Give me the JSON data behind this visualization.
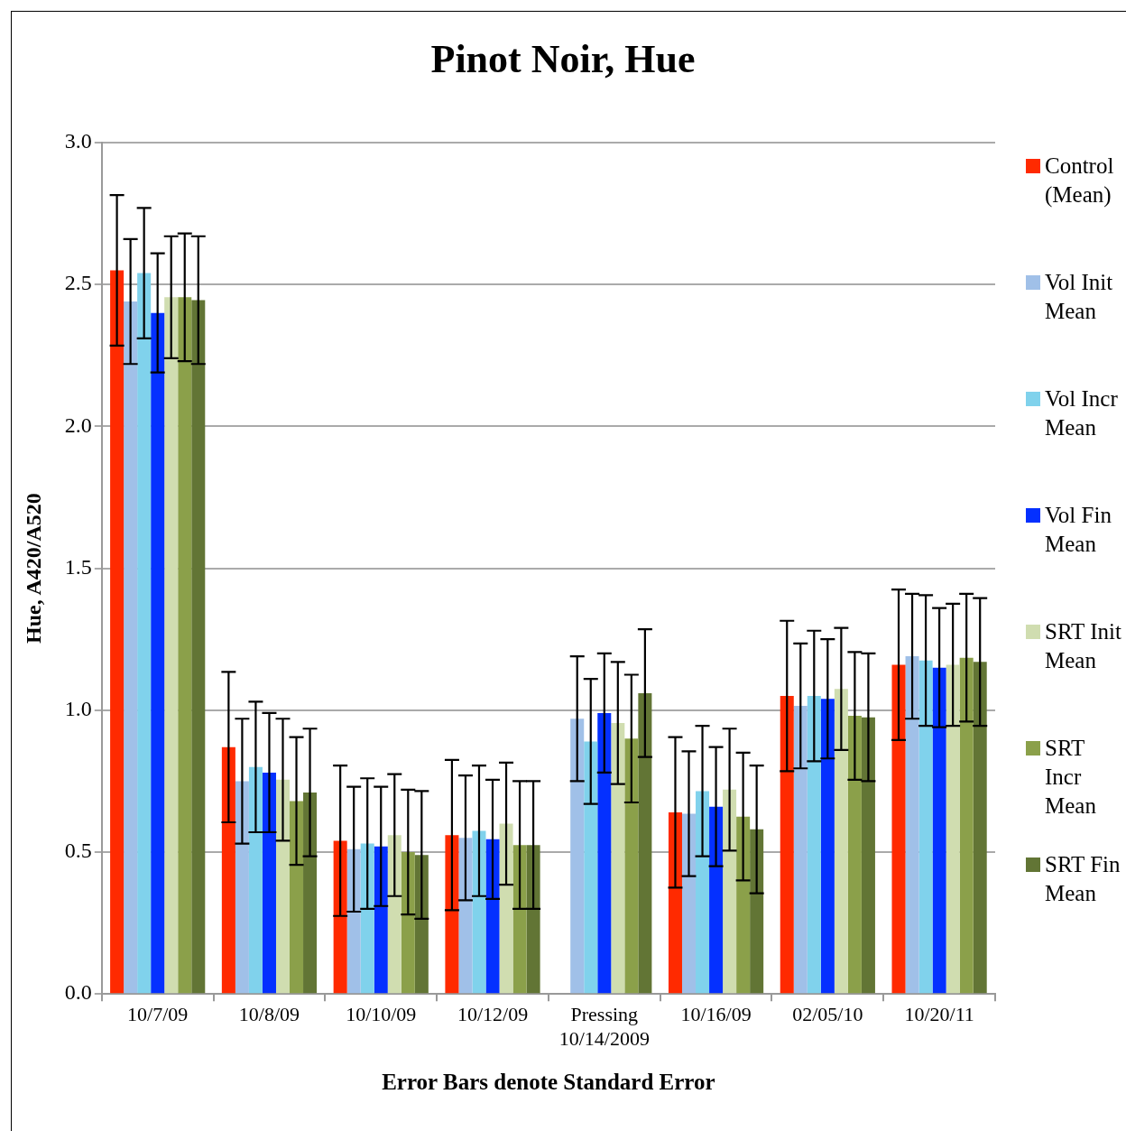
{
  "chart_data": {
    "type": "bar",
    "title": "Pinot Noir, Hue",
    "xlabel": "Error Bars denote Standard Error",
    "ylabel": "Hue, A420/A520",
    "categories": [
      "10/7/09",
      "10/8/09",
      "10/10/09",
      "10/12/09",
      "Pressing 10/14/2009",
      "10/16/09",
      "02/05/10",
      "10/20/11"
    ],
    "series": [
      {
        "name": "Control (Mean)",
        "color": "#ff2a00",
        "values": [
          2.55,
          0.87,
          0.54,
          0.56,
          null,
          0.64,
          1.05,
          1.16
        ],
        "errors": [
          0.265,
          0.265,
          0.265,
          0.265,
          null,
          0.265,
          0.265,
          0.265
        ]
      },
      {
        "name": "Vol Init Mean",
        "color": "#a0c0e8",
        "values": [
          2.44,
          0.75,
          0.51,
          0.55,
          0.97,
          0.635,
          1.015,
          1.19
        ],
        "errors": [
          0.22,
          0.22,
          0.22,
          0.22,
          0.22,
          0.22,
          0.22,
          0.22
        ]
      },
      {
        "name": "Vol Incr Mean",
        "color": "#80d2ec",
        "values": [
          2.54,
          0.8,
          0.53,
          0.575,
          0.89,
          0.715,
          1.05,
          1.175
        ],
        "errors": [
          0.23,
          0.23,
          0.23,
          0.23,
          0.22,
          0.23,
          0.23,
          0.23
        ]
      },
      {
        "name": "Vol Fin Mean",
        "color": "#0430ff",
        "values": [
          2.4,
          0.78,
          0.52,
          0.545,
          0.99,
          0.66,
          1.04,
          1.15
        ],
        "errors": [
          0.21,
          0.21,
          0.21,
          0.21,
          0.21,
          0.21,
          0.21,
          0.21
        ]
      },
      {
        "name": "SRT Init Mean",
        "color": "#d0ddb0",
        "values": [
          2.455,
          0.755,
          0.56,
          0.6,
          0.955,
          0.72,
          1.075,
          1.16
        ],
        "errors": [
          0.215,
          0.215,
          0.215,
          0.215,
          0.215,
          0.215,
          0.215,
          0.215
        ]
      },
      {
        "name": "SRT Incr Mean",
        "color": "#8ba04a",
        "values": [
          2.455,
          0.68,
          0.5,
          0.525,
          0.9,
          0.625,
          0.98,
          1.185
        ],
        "errors": [
          0.225,
          0.225,
          0.22,
          0.225,
          0.225,
          0.225,
          0.225,
          0.225
        ]
      },
      {
        "name": "SRT Fin Mean",
        "color": "#627535",
        "values": [
          2.445,
          0.71,
          0.49,
          0.525,
          1.06,
          0.58,
          0.975,
          1.17
        ],
        "errors": [
          0.225,
          0.225,
          0.225,
          0.225,
          0.225,
          0.225,
          0.225,
          0.225
        ]
      }
    ],
    "ylim": [
      0,
      3
    ],
    "yticks": [
      {
        "value": 0,
        "label": "0.0"
      },
      0.5,
      {
        "value": 1,
        "label": "1.0"
      },
      1.5,
      {
        "value": 2,
        "label": "2.0"
      },
      2.5,
      {
        "value": 3,
        "label": "3.0"
      }
    ],
    "grid": "y",
    "legend": "right"
  }
}
